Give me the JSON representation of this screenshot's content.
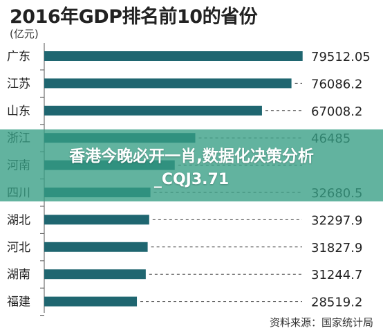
{
  "title": "2016年GDP排名前10的省份",
  "unit": "(亿元)",
  "source": "资料来源：国家统计局",
  "overlay": {
    "line1": "香港今晚必开一肖,数据化决策分析",
    "line2": "_CQJ3.71"
  },
  "colors": {
    "bar": "#1f6670",
    "overlay": "#369e84",
    "axis": "#555555"
  },
  "chart_data": {
    "type": "bar",
    "orientation": "horizontal",
    "title": "2016年GDP排名前10的省份",
    "ylabel": "(亿元)",
    "categories": [
      "广东",
      "江苏",
      "山东",
      "浙江",
      "河南",
      "四川",
      "湖北",
      "河北",
      "湖南",
      "福建"
    ],
    "values": [
      79512.05,
      76086.2,
      67008.2,
      46485,
      40160,
      32680.5,
      32297.9,
      31827.9,
      31244.7,
      28519.2
    ],
    "labels": [
      "79512.05",
      "76086.2",
      "67008.2",
      "46485",
      "",
      "32680.5",
      "32297.9",
      "31827.9",
      "31244.7",
      "28519.2"
    ],
    "xlim": [
      0,
      80000
    ]
  }
}
